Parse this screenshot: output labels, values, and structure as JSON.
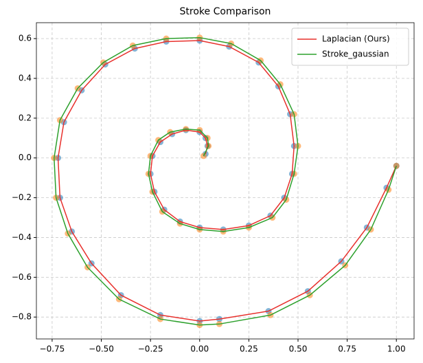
{
  "chart_data": {
    "type": "line",
    "title": "Stroke Comparison",
    "xlim": [
      -0.83,
      1.09
    ],
    "ylim": [
      -0.91,
      0.68
    ],
    "xticks": [
      {
        "value": -0.75,
        "label": "−0.75"
      },
      {
        "value": -0.5,
        "label": "−0.50"
      },
      {
        "value": -0.25,
        "label": "−0.25"
      },
      {
        "value": 0,
        "label": "0.00"
      },
      {
        "value": 0.25,
        "label": "0.25"
      },
      {
        "value": 0.5,
        "label": "0.50"
      },
      {
        "value": 0.75,
        "label": "0.75"
      },
      {
        "value": 1,
        "label": "1.00"
      }
    ],
    "yticks": [
      {
        "value": -0.8,
        "label": "−0.8"
      },
      {
        "value": -0.6,
        "label": "−0.6"
      },
      {
        "value": -0.4,
        "label": "−0.4"
      },
      {
        "value": -0.2,
        "label": "−0.2"
      },
      {
        "value": 0,
        "label": "0.0"
      },
      {
        "value": 0.2,
        "label": "0.2"
      },
      {
        "value": 0.4,
        "label": "0.4"
      },
      {
        "value": 0.6,
        "label": "0.6"
      }
    ],
    "grid": true,
    "legend": "upper-right",
    "series": [
      {
        "type": "scatter",
        "color": "#1f77b4",
        "x": [
          1.0,
          0.95,
          0.85,
          0.72,
          0.55,
          0.35,
          0.1,
          0,
          -0.2,
          -0.4,
          -0.55,
          -0.65,
          -0.71,
          -0.72,
          -0.69,
          -0.6,
          -0.48,
          -0.33,
          -0.17,
          0,
          0.15,
          0.3,
          0.4,
          0.46,
          0.48,
          0.47,
          0.43,
          0.36,
          0.25,
          0.12,
          0,
          -0.1,
          -0.18,
          -0.23,
          -0.25,
          -0.24,
          -0.2,
          -0.14,
          -0.07,
          0,
          0.03,
          0.04,
          0.03
        ],
        "values": [
          -0.04,
          -0.15,
          -0.35,
          -0.52,
          -0.67,
          -0.77,
          -0.81,
          -0.82,
          -0.79,
          -0.69,
          -0.53,
          -0.37,
          -0.2,
          0,
          0.18,
          0.34,
          0.47,
          0.55,
          0.585,
          0.59,
          0.56,
          0.48,
          0.36,
          0.22,
          0.06,
          -0.08,
          -0.2,
          -0.29,
          -0.34,
          -0.36,
          -0.35,
          -0.32,
          -0.26,
          -0.17,
          -0.08,
          0.01,
          0.08,
          0.12,
          0.14,
          0.13,
          0.1,
          0.06,
          0.02
        ]
      },
      {
        "type": "scatter",
        "color": "#ff7f0e",
        "x": [
          1.0,
          0.96,
          0.87,
          0.74,
          0.56,
          0.36,
          0.1,
          0,
          -0.2,
          -0.41,
          -0.57,
          -0.67,
          -0.73,
          -0.74,
          -0.71,
          -0.62,
          -0.49,
          -0.34,
          -0.17,
          0,
          0.16,
          0.31,
          0.41,
          0.48,
          0.5,
          0.48,
          0.44,
          0.37,
          0.25,
          0.12,
          0,
          -0.1,
          -0.19,
          -0.24,
          -0.26,
          -0.25,
          -0.21,
          -0.15,
          -0.07,
          0,
          0.04,
          0.045,
          0.02
        ],
        "values": [
          -0.04,
          -0.16,
          -0.36,
          -0.54,
          -0.69,
          -0.79,
          -0.835,
          -0.84,
          -0.81,
          -0.71,
          -0.55,
          -0.38,
          -0.2,
          0,
          0.19,
          0.35,
          0.48,
          0.565,
          0.6,
          0.605,
          0.575,
          0.49,
          0.37,
          0.22,
          0.06,
          -0.08,
          -0.21,
          -0.3,
          -0.35,
          -0.37,
          -0.36,
          -0.33,
          -0.27,
          -0.17,
          -0.08,
          0.01,
          0.09,
          0.13,
          0.145,
          0.14,
          0.1,
          0.06,
          0.01
        ]
      },
      {
        "name": "Laplacian (Ours)",
        "color": "#e8302c",
        "x": [
          1.0,
          0.95,
          0.85,
          0.72,
          0.55,
          0.35,
          0.1,
          0,
          -0.2,
          -0.4,
          -0.55,
          -0.65,
          -0.71,
          -0.72,
          -0.69,
          -0.6,
          -0.48,
          -0.33,
          -0.17,
          0,
          0.15,
          0.3,
          0.4,
          0.46,
          0.48,
          0.47,
          0.43,
          0.36,
          0.25,
          0.12,
          0,
          -0.1,
          -0.18,
          -0.23,
          -0.25,
          -0.24,
          -0.2,
          -0.14,
          -0.07,
          0,
          0.03,
          0.04,
          0.03
        ],
        "values": [
          -0.04,
          -0.15,
          -0.35,
          -0.52,
          -0.67,
          -0.77,
          -0.81,
          -0.82,
          -0.79,
          -0.69,
          -0.53,
          -0.37,
          -0.2,
          0,
          0.18,
          0.34,
          0.47,
          0.55,
          0.585,
          0.59,
          0.56,
          0.48,
          0.36,
          0.22,
          0.06,
          -0.08,
          -0.2,
          -0.29,
          -0.34,
          -0.36,
          -0.35,
          -0.32,
          -0.26,
          -0.17,
          -0.08,
          0.01,
          0.08,
          0.12,
          0.14,
          0.13,
          0.1,
          0.06,
          0.02
        ]
      },
      {
        "name": "Stroke_gaussian",
        "color": "#2ca02c",
        "x": [
          1.0,
          0.96,
          0.87,
          0.74,
          0.56,
          0.36,
          0.1,
          0,
          -0.2,
          -0.41,
          -0.57,
          -0.67,
          -0.73,
          -0.74,
          -0.71,
          -0.62,
          -0.49,
          -0.34,
          -0.17,
          0,
          0.16,
          0.31,
          0.41,
          0.48,
          0.5,
          0.48,
          0.44,
          0.37,
          0.25,
          0.12,
          0,
          -0.1,
          -0.19,
          -0.24,
          -0.26,
          -0.25,
          -0.21,
          -0.15,
          -0.07,
          0,
          0.04,
          0.045,
          0.02
        ],
        "values": [
          -0.04,
          -0.16,
          -0.36,
          -0.54,
          -0.69,
          -0.79,
          -0.835,
          -0.84,
          -0.81,
          -0.71,
          -0.55,
          -0.38,
          -0.2,
          0,
          0.19,
          0.35,
          0.48,
          0.565,
          0.6,
          0.605,
          0.575,
          0.49,
          0.37,
          0.22,
          0.06,
          -0.08,
          -0.21,
          -0.3,
          -0.35,
          -0.37,
          -0.36,
          -0.33,
          -0.27,
          -0.17,
          -0.08,
          0.01,
          0.09,
          0.13,
          0.145,
          0.14,
          0.1,
          0.06,
          0.01
        ]
      }
    ]
  }
}
